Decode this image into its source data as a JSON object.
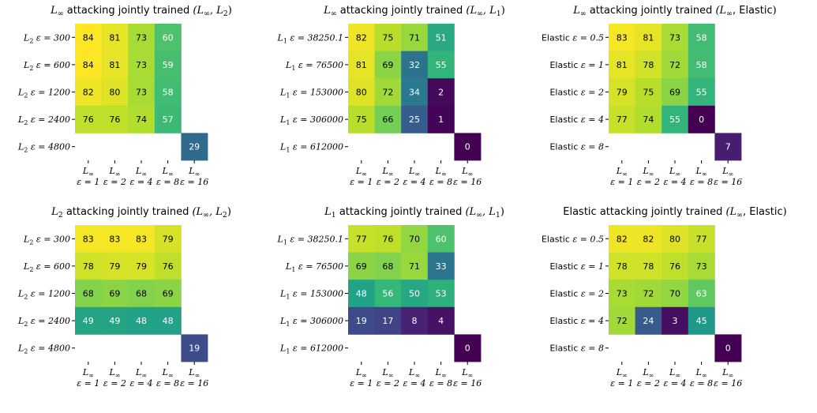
{
  "chart_data": [
    {
      "type": "heatmap",
      "title": "$L_\\infty$ attacking jointly trained $(L_\\infty, L_2)$",
      "rows": [
        "$L_2$ $\\varepsilon = 300$",
        "$L_2$ $\\varepsilon = 600$",
        "$L_2$ $\\varepsilon = 1200$",
        "$L_2$ $\\varepsilon = 2400$",
        "$L_2$ $\\varepsilon = 4800$"
      ],
      "columns": [
        "$L_\\infty$ $\\varepsilon = 1$",
        "$L_\\infty$ $\\varepsilon = 2$",
        "$L_\\infty$ $\\varepsilon = 4$",
        "$L_\\infty$ $\\varepsilon = 8$",
        "$L_\\infty$ $\\varepsilon = 16$"
      ],
      "values": [
        [
          84,
          81,
          73,
          60,
          null
        ],
        [
          84,
          81,
          73,
          59,
          null
        ],
        [
          82,
          80,
          73,
          58,
          null
        ],
        [
          76,
          76,
          74,
          57,
          null
        ],
        [
          null,
          null,
          null,
          null,
          29
        ]
      ]
    },
    {
      "type": "heatmap",
      "title": "$L_\\infty$ attacking jointly trained $(L_\\infty, L_1)$",
      "rows": [
        "$L_1$ $\\varepsilon = 38250.1$",
        "$L_1$ $\\varepsilon = 76500$",
        "$L_1$ $\\varepsilon = 153000$",
        "$L_1$ $\\varepsilon = 306000$",
        "$L_1$ $\\varepsilon = 612000$"
      ],
      "columns": [
        "$L_\\infty$ $\\varepsilon = 1$",
        "$L_\\infty$ $\\varepsilon = 2$",
        "$L_\\infty$ $\\varepsilon = 4$",
        "$L_\\infty$ $\\varepsilon = 8$",
        "$L_\\infty$ $\\varepsilon = 16$"
      ],
      "values": [
        [
          82,
          75,
          71,
          51,
          null
        ],
        [
          81,
          69,
          32,
          55,
          null
        ],
        [
          80,
          72,
          34,
          2,
          null
        ],
        [
          75,
          66,
          25,
          1,
          null
        ],
        [
          null,
          null,
          null,
          null,
          0
        ]
      ]
    },
    {
      "type": "heatmap",
      "title": "$L_\\infty$ attacking jointly trained $(L_\\infty$, Elastic$)$",
      "rows": [
        "Elastic $\\varepsilon = 0.5$",
        "Elastic $\\varepsilon = 1$",
        "Elastic $\\varepsilon = 2$",
        "Elastic $\\varepsilon = 4$",
        "Elastic $\\varepsilon = 8$"
      ],
      "columns": [
        "$L_\\infty$ $\\varepsilon = 1$",
        "$L_\\infty$ $\\varepsilon = 2$",
        "$L_\\infty$ $\\varepsilon = 4$",
        "$L_\\infty$ $\\varepsilon = 8$",
        "$L_\\infty$ $\\varepsilon = 16$"
      ],
      "values": [
        [
          83,
          81,
          73,
          58,
          null
        ],
        [
          81,
          78,
          72,
          58,
          null
        ],
        [
          79,
          75,
          69,
          55,
          null
        ],
        [
          77,
          74,
          55,
          0,
          null
        ],
        [
          null,
          null,
          null,
          null,
          7
        ]
      ]
    },
    {
      "type": "heatmap",
      "title": "$L_2$ attacking jointly trained $(L_\\infty, L_2)$",
      "rows": [
        "$L_2$ $\\varepsilon = 300$",
        "$L_2$ $\\varepsilon = 600$",
        "$L_2$ $\\varepsilon = 1200$",
        "$L_2$ $\\varepsilon = 2400$",
        "$L_2$ $\\varepsilon = 4800$"
      ],
      "columns": [
        "$L_\\infty$ $\\varepsilon = 1$",
        "$L_\\infty$ $\\varepsilon = 2$",
        "$L_\\infty$ $\\varepsilon = 4$",
        "$L_\\infty$ $\\varepsilon = 8$",
        "$L_\\infty$ $\\varepsilon = 16$"
      ],
      "values": [
        [
          83,
          83,
          83,
          79,
          null
        ],
        [
          78,
          79,
          79,
          76,
          null
        ],
        [
          68,
          69,
          68,
          69,
          null
        ],
        [
          49,
          49,
          48,
          48,
          null
        ],
        [
          null,
          null,
          null,
          null,
          19
        ]
      ]
    },
    {
      "type": "heatmap",
      "title": "$L_1$ attacking jointly trained $(L_\\infty, L_1)$",
      "rows": [
        "$L_1$ $\\varepsilon = 38250.1$",
        "$L_1$ $\\varepsilon = 76500$",
        "$L_1$ $\\varepsilon = 153000$",
        "$L_1$ $\\varepsilon = 306000$",
        "$L_1$ $\\varepsilon = 612000$"
      ],
      "columns": [
        "$L_\\infty$ $\\varepsilon = 1$",
        "$L_\\infty$ $\\varepsilon = 2$",
        "$L_\\infty$ $\\varepsilon = 4$",
        "$L_\\infty$ $\\varepsilon = 8$",
        "$L_\\infty$ $\\varepsilon = 16$"
      ],
      "values": [
        [
          77,
          76,
          70,
          60,
          null
        ],
        [
          69,
          68,
          71,
          33,
          null
        ],
        [
          48,
          56,
          50,
          53,
          null
        ],
        [
          19,
          17,
          8,
          4,
          null
        ],
        [
          null,
          null,
          null,
          null,
          0
        ]
      ]
    },
    {
      "type": "heatmap",
      "title": "Elastic attacking jointly trained $(L_\\infty$, Elastic$)$",
      "rows": [
        "Elastic $\\varepsilon = 0.5$",
        "Elastic $\\varepsilon = 1$",
        "Elastic $\\varepsilon = 2$",
        "Elastic $\\varepsilon = 4$",
        "Elastic $\\varepsilon = 8$"
      ],
      "columns": [
        "$L_\\infty$ $\\varepsilon = 1$",
        "$L_\\infty$ $\\varepsilon = 2$",
        "$L_\\infty$ $\\varepsilon = 4$",
        "$L_\\infty$ $\\varepsilon = 8$",
        "$L_\\infty$ $\\varepsilon = 16$"
      ],
      "values": [
        [
          82,
          82,
          80,
          77,
          null
        ],
        [
          78,
          78,
          76,
          73,
          null
        ],
        [
          73,
          72,
          70,
          63,
          null
        ],
        [
          72,
          24,
          3,
          45,
          null
        ],
        [
          null,
          null,
          null,
          null,
          0
        ]
      ]
    }
  ],
  "colormap": "viridis"
}
